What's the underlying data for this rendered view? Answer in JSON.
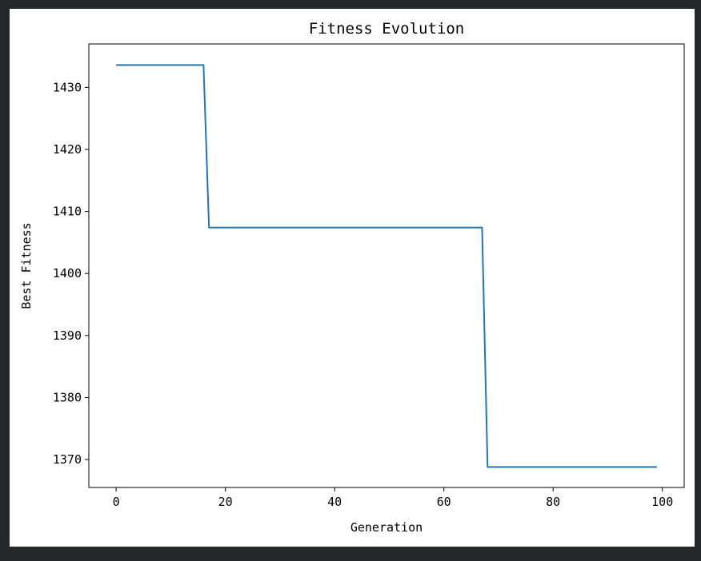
{
  "colors": {
    "background": "#25282b",
    "figure": "#ffffff",
    "line": "#1f77b4"
  },
  "chart_data": {
    "type": "line",
    "title": "Fitness Evolution",
    "xlabel": "Generation",
    "ylabel": "Best Fitness",
    "xlim": [
      -5,
      104
    ],
    "ylim": [
      1365.5,
      1437.0
    ],
    "xticks": [
      0,
      20,
      40,
      60,
      80,
      100
    ],
    "yticks": [
      1370,
      1380,
      1390,
      1400,
      1410,
      1420,
      1430
    ],
    "grid": false,
    "legend": "none",
    "series": [
      {
        "points": [
          [
            0,
            1433.6
          ],
          [
            16,
            1433.6
          ],
          [
            17,
            1407.4
          ],
          [
            67,
            1407.4
          ],
          [
            68,
            1368.8
          ],
          [
            99,
            1368.8
          ]
        ]
      }
    ]
  }
}
